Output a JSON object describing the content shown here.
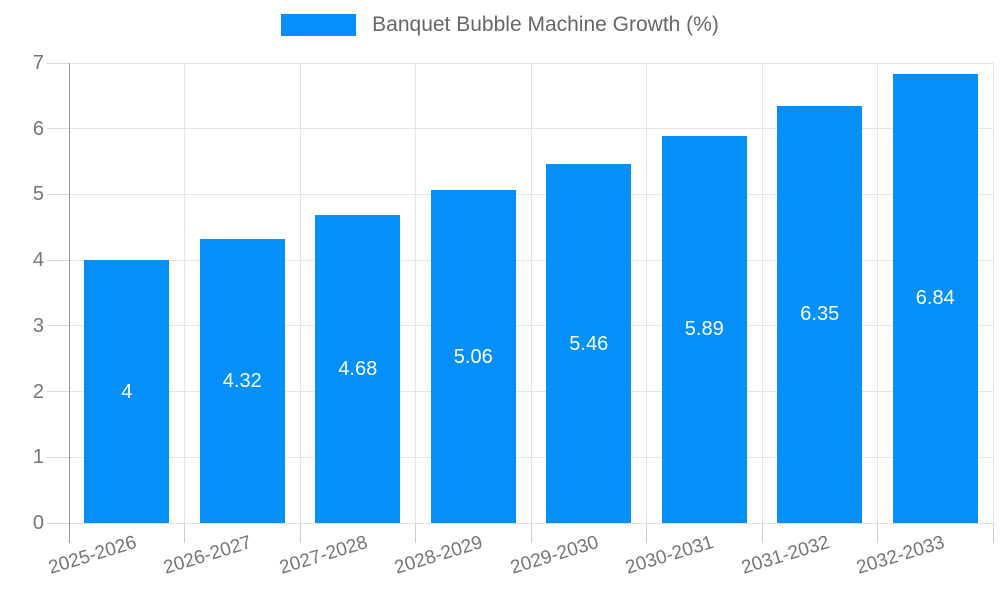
{
  "legend": {
    "label": "Banquet Bubble Machine Growth (%)"
  },
  "chart_data": {
    "type": "bar",
    "title": "Banquet Bubble Machine Growth (%)",
    "categories": [
      "2025-2026",
      "2026-2027",
      "2027-2028",
      "2028-2029",
      "2029-2030",
      "2030-2031",
      "2031-2032",
      "2032-2033"
    ],
    "values": [
      4,
      4.32,
      4.68,
      5.06,
      5.46,
      5.89,
      6.35,
      6.84
    ],
    "value_labels": [
      "4",
      "4.32",
      "4.68",
      "5.06",
      "5.46",
      "5.89",
      "6.35",
      "6.84"
    ],
    "xlabel": "",
    "ylabel": "",
    "ylim": [
      0,
      7
    ],
    "ytick_step": 1,
    "yticks": [
      0,
      1,
      2,
      3,
      4,
      5,
      6,
      7
    ],
    "grid": true,
    "legend_position": "top-center",
    "colors": {
      "bar": "#0590F9",
      "value_label": "#ffffff",
      "tick_label": "#757575",
      "legend_text": "#666666",
      "gridline": "#e6e6e6",
      "axis_line": "#999999",
      "minor_tick": "#d9d9d9",
      "x_axis_line": "#e0e0e0"
    }
  }
}
